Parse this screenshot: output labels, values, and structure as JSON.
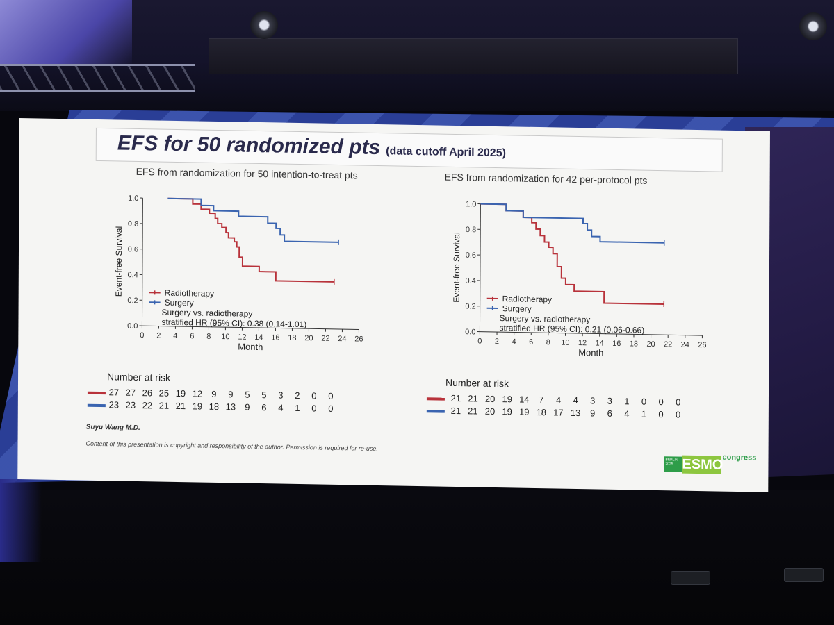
{
  "slide": {
    "title": "EFS for 50 randomized pts",
    "subtitle": "(data cutoff April 2025)",
    "author": "Suyu Wang M.D.",
    "copyright": "Content of this presentation is copyright and responsibility of the author. Permission is required for re-use.",
    "logo": {
      "box_text": "BERLIN 2025",
      "word": "ESMO",
      "congress": "congress"
    }
  },
  "colors": {
    "radiotherapy": "#b8323a",
    "surgery": "#3a64b0"
  },
  "left_panel": {
    "title": "EFS from randomization  for 50 intention-to-treat pts",
    "hr_line1": "Surgery vs. radiotherapy",
    "hr_line2": "stratified HR (95% CI): 0.38 (0.14-1.01)",
    "risk_title": "Number at risk",
    "risk_radiotherapy": [
      "27",
      "27",
      "26",
      "25",
      "19",
      "12",
      "9",
      "9",
      "5",
      "5",
      "3",
      "2",
      "0",
      "0"
    ],
    "risk_surgery": [
      "23",
      "23",
      "22",
      "21",
      "21",
      "19",
      "18",
      "13",
      "9",
      "6",
      "4",
      "1",
      "0",
      "0"
    ]
  },
  "right_panel": {
    "title": "EFS from randomization for 42 per-protocol pts",
    "hr_line1": "Surgery vs. radiotherapy",
    "hr_line2": "stratified HR (95% CI): 0.21 (0.06-0.66)",
    "risk_title": "Number at risk",
    "risk_radiotherapy": [
      "21",
      "21",
      "20",
      "19",
      "14",
      "7",
      "4",
      "4",
      "3",
      "3",
      "1",
      "0",
      "0",
      "0"
    ],
    "risk_surgery": [
      "21",
      "21",
      "20",
      "19",
      "19",
      "18",
      "17",
      "13",
      "9",
      "6",
      "4",
      "1",
      "0",
      "0"
    ]
  },
  "chart_data": [
    {
      "type": "line",
      "title": "EFS from randomization  for 50 intention-to-treat pts",
      "xlabel": "Month",
      "ylabel": "Event-free Survival",
      "xlim": [
        0,
        26
      ],
      "ylim": [
        0.0,
        1.0
      ],
      "xticks": [
        "0",
        "2",
        "4",
        "6",
        "8",
        "10",
        "12",
        "14",
        "16",
        "18",
        "20",
        "22",
        "24",
        "26"
      ],
      "yticks": [
        "0.0",
        "0.2",
        "0.4",
        "0.6",
        "0.8",
        "1.0"
      ],
      "legend": "bottom-left",
      "series": [
        {
          "name": "Radiotherapy",
          "x": [
            3,
            6,
            7,
            8,
            8.7,
            9,
            9.5,
            10,
            10.3,
            11,
            11.3,
            11.6,
            12,
            14,
            16,
            23
          ],
          "y": [
            1.0,
            0.96,
            0.92,
            0.89,
            0.85,
            0.81,
            0.78,
            0.74,
            0.7,
            0.67,
            0.63,
            0.55,
            0.48,
            0.44,
            0.37,
            0.37
          ]
        },
        {
          "name": "Surgery",
          "x": [
            3,
            7,
            8.5,
            11.5,
            15,
            16,
            16.5,
            17,
            23.5
          ],
          "y": [
            1.0,
            0.95,
            0.91,
            0.87,
            0.82,
            0.78,
            0.73,
            0.68,
            0.68
          ]
        }
      ]
    },
    {
      "type": "line",
      "title": "EFS from randomization for 42 per-protocol pts",
      "xlabel": "Month",
      "ylabel": "Event-free Survival",
      "xlim": [
        0,
        26
      ],
      "ylim": [
        0.0,
        1.0
      ],
      "xticks": [
        "0",
        "2",
        "4",
        "6",
        "8",
        "10",
        "12",
        "14",
        "16",
        "18",
        "20",
        "22",
        "24",
        "26"
      ],
      "yticks": [
        "0.0",
        "0.2",
        "0.4",
        "0.6",
        "0.8",
        "1.0"
      ],
      "legend": "bottom-left",
      "series": [
        {
          "name": "Radiotherapy",
          "x": [
            0,
            3,
            5,
            6,
            6.5,
            7,
            7.5,
            8,
            8.5,
            9,
            9.5,
            10,
            11,
            14.5,
            21.5
          ],
          "y": [
            1.0,
            0.95,
            0.9,
            0.86,
            0.81,
            0.76,
            0.71,
            0.67,
            0.62,
            0.52,
            0.43,
            0.38,
            0.33,
            0.24,
            0.24
          ]
        },
        {
          "name": "Surgery",
          "x": [
            0,
            3,
            5,
            12,
            12.5,
            13,
            14,
            21.5
          ],
          "y": [
            1.0,
            0.95,
            0.9,
            0.86,
            0.81,
            0.76,
            0.72,
            0.72
          ]
        }
      ]
    }
  ]
}
